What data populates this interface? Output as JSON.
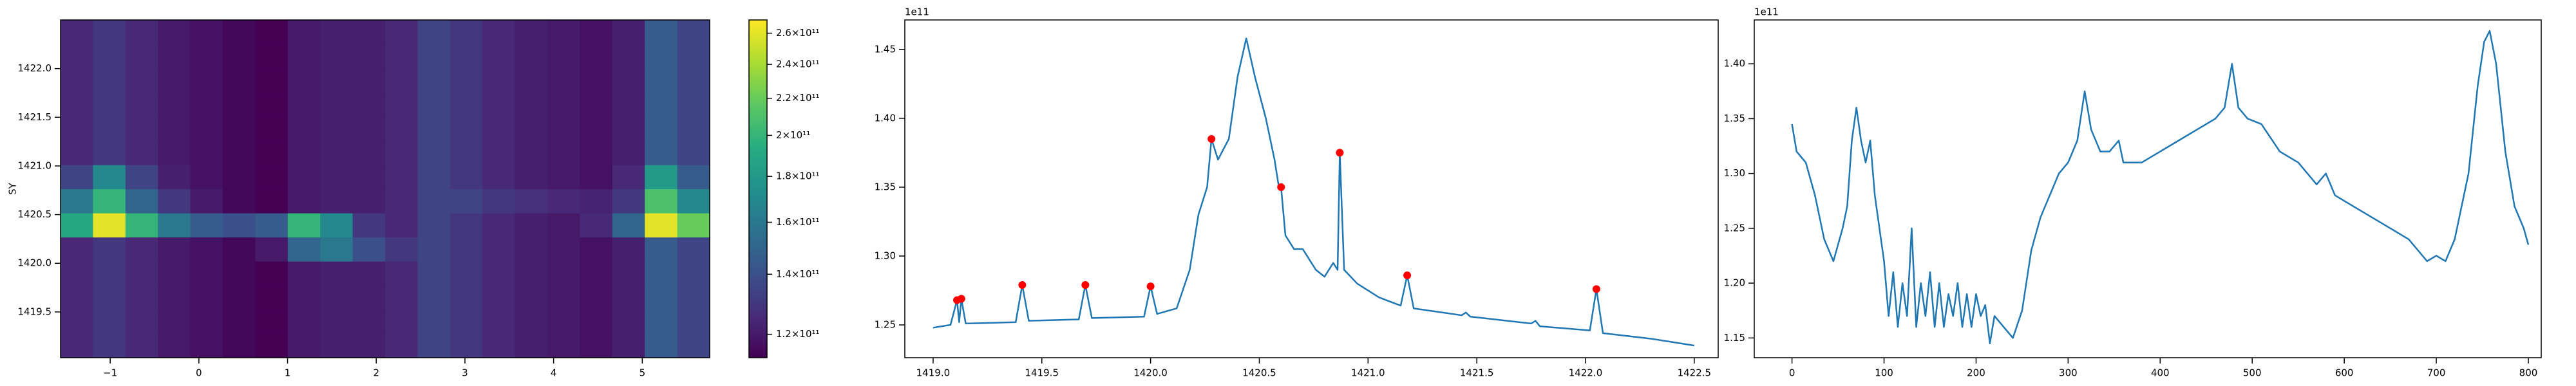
{
  "chart_data": [
    {
      "type": "heatmap",
      "ylabel": "SY",
      "xlim": [
        -1.56,
        5.76
      ],
      "ylim": [
        1419.03,
        1422.5
      ],
      "xticks": [
        {
          "value": -1,
          "label": "−1"
        },
        0,
        1,
        2,
        3,
        4,
        5
      ],
      "yticks": [
        1419.5,
        {
          "value": 1420,
          "label": "1420.0"
        },
        1420.5,
        {
          "value": 1421,
          "label": "1421.0"
        },
        1421.5,
        {
          "value": 1422,
          "label": "1422.0"
        }
      ],
      "colormap": "viridis",
      "color_scale": "log",
      "clim": [
        113000000000.0,
        269000000000.0
      ],
      "cticks": [
        {
          "value": 120000000000.0,
          "label": "1.2×10¹¹"
        },
        {
          "value": 140000000000.0,
          "label": "1.4×10¹¹"
        },
        {
          "value": 160000000000.0,
          "label": "1.6×10¹¹"
        },
        {
          "value": 180000000000.0,
          "label": "1.8×10¹¹"
        },
        {
          "value": 200000000000.0,
          "label": "2×10¹¹"
        },
        {
          "value": 220000000000.0,
          "label": "2.2×10¹¹"
        },
        {
          "value": 240000000000.0,
          "label": "2.4×10¹¹"
        },
        {
          "value": 260000000000.0,
          "label": "2.6×10¹¹"
        }
      ],
      "z": [
        [
          125000000000.0,
          130000000000.0,
          125000000000.0,
          120000000000.0,
          118000000000.0,
          115000000000.0,
          113000000000.0,
          120000000000.0,
          122000000000.0,
          122000000000.0,
          125000000000.0,
          135000000000.0,
          130000000000.0,
          125000000000.0,
          122000000000.0,
          120000000000.0,
          118000000000.0,
          122000000000.0,
          145000000000.0,
          135000000000.0
        ],
        [
          125000000000.0,
          130000000000.0,
          125000000000.0,
          120000000000.0,
          118000000000.0,
          115000000000.0,
          113000000000.0,
          120000000000.0,
          122000000000.0,
          122000000000.0,
          125000000000.0,
          135000000000.0,
          130000000000.0,
          125000000000.0,
          122000000000.0,
          120000000000.0,
          118000000000.0,
          122000000000.0,
          145000000000.0,
          135000000000.0
        ],
        [
          125000000000.0,
          130000000000.0,
          125000000000.0,
          120000000000.0,
          118000000000.0,
          115000000000.0,
          113000000000.0,
          120000000000.0,
          122000000000.0,
          122000000000.0,
          125000000000.0,
          135000000000.0,
          130000000000.0,
          125000000000.0,
          122000000000.0,
          120000000000.0,
          118000000000.0,
          122000000000.0,
          145000000000.0,
          135000000000.0
        ],
        [
          125000000000.0,
          130000000000.0,
          125000000000.0,
          120000000000.0,
          118000000000.0,
          115000000000.0,
          113000000000.0,
          120000000000.0,
          122000000000.0,
          122000000000.0,
          125000000000.0,
          135000000000.0,
          130000000000.0,
          125000000000.0,
          122000000000.0,
          120000000000.0,
          118000000000.0,
          122000000000.0,
          145000000000.0,
          135000000000.0
        ],
        [
          125000000000.0,
          130000000000.0,
          125000000000.0,
          120000000000.0,
          118000000000.0,
          115000000000.0,
          120000000000.0,
          150000000000.0,
          160000000000.0,
          140000000000.0,
          130000000000.0,
          135000000000.0,
          130000000000.0,
          125000000000.0,
          122000000000.0,
          120000000000.0,
          118000000000.0,
          122000000000.0,
          145000000000.0,
          135000000000.0
        ],
        [
          190000000000.0,
          260000000000.0,
          200000000000.0,
          160000000000.0,
          145000000000.0,
          140000000000.0,
          145000000000.0,
          200000000000.0,
          170000000000.0,
          130000000000.0,
          125000000000.0,
          135000000000.0,
          130000000000.0,
          125000000000.0,
          122000000000.0,
          120000000000.0,
          125000000000.0,
          150000000000.0,
          260000000000.0,
          220000000000.0
        ],
        [
          160000000000.0,
          200000000000.0,
          150000000000.0,
          130000000000.0,
          120000000000.0,
          115000000000.0,
          113000000000.0,
          120000000000.0,
          122000000000.0,
          122000000000.0,
          125000000000.0,
          135000000000.0,
          135000000000.0,
          130000000000.0,
          127000000000.0,
          125000000000.0,
          123000000000.0,
          130000000000.0,
          210000000000.0,
          170000000000.0
        ],
        [
          135000000000.0,
          170000000000.0,
          135000000000.0,
          122000000000.0,
          118000000000.0,
          115000000000.0,
          113000000000.0,
          120000000000.0,
          122000000000.0,
          122000000000.0,
          125000000000.0,
          135000000000.0,
          130000000000.0,
          125000000000.0,
          122000000000.0,
          120000000000.0,
          118000000000.0,
          125000000000.0,
          180000000000.0,
          145000000000.0
        ],
        [
          125000000000.0,
          130000000000.0,
          125000000000.0,
          120000000000.0,
          118000000000.0,
          115000000000.0,
          113000000000.0,
          120000000000.0,
          122000000000.0,
          122000000000.0,
          125000000000.0,
          135000000000.0,
          130000000000.0,
          125000000000.0,
          122000000000.0,
          120000000000.0,
          118000000000.0,
          122000000000.0,
          145000000000.0,
          135000000000.0
        ],
        [
          125000000000.0,
          130000000000.0,
          125000000000.0,
          120000000000.0,
          118000000000.0,
          115000000000.0,
          113000000000.0,
          120000000000.0,
          122000000000.0,
          122000000000.0,
          125000000000.0,
          135000000000.0,
          130000000000.0,
          125000000000.0,
          122000000000.0,
          120000000000.0,
          118000000000.0,
          122000000000.0,
          145000000000.0,
          135000000000.0
        ],
        [
          125000000000.0,
          130000000000.0,
          125000000000.0,
          120000000000.0,
          118000000000.0,
          115000000000.0,
          113000000000.0,
          120000000000.0,
          122000000000.0,
          122000000000.0,
          125000000000.0,
          135000000000.0,
          130000000000.0,
          125000000000.0,
          122000000000.0,
          120000000000.0,
          118000000000.0,
          122000000000.0,
          145000000000.0,
          135000000000.0
        ],
        [
          125000000000.0,
          130000000000.0,
          125000000000.0,
          120000000000.0,
          118000000000.0,
          115000000000.0,
          113000000000.0,
          120000000000.0,
          122000000000.0,
          122000000000.0,
          125000000000.0,
          135000000000.0,
          130000000000.0,
          125000000000.0,
          122000000000.0,
          120000000000.0,
          118000000000.0,
          122000000000.0,
          145000000000.0,
          135000000000.0
        ],
        [
          125000000000.0,
          130000000000.0,
          125000000000.0,
          120000000000.0,
          118000000000.0,
          115000000000.0,
          113000000000.0,
          120000000000.0,
          122000000000.0,
          122000000000.0,
          125000000000.0,
          135000000000.0,
          130000000000.0,
          125000000000.0,
          122000000000.0,
          120000000000.0,
          118000000000.0,
          122000000000.0,
          145000000000.0,
          135000000000.0
        ],
        [
          125000000000.0,
          130000000000.0,
          125000000000.0,
          120000000000.0,
          118000000000.0,
          115000000000.0,
          113000000000.0,
          120000000000.0,
          122000000000.0,
          122000000000.0,
          125000000000.0,
          135000000000.0,
          130000000000.0,
          125000000000.0,
          122000000000.0,
          120000000000.0,
          118000000000.0,
          122000000000.0,
          145000000000.0,
          135000000000.0
        ]
      ]
    },
    {
      "type": "line",
      "offset_text": "1e11",
      "xlim": [
        1418.87,
        1422.61
      ],
      "ylim": [
        1.2262,
        1.4714
      ],
      "xticks": [
        {
          "value": 1419,
          "label": "1419.0"
        },
        1419.5,
        {
          "value": 1420,
          "label": "1420.0"
        },
        1420.5,
        {
          "value": 1421,
          "label": "1421.0"
        },
        1421.5,
        {
          "value": 1422,
          "label": "1422.0"
        },
        1422.5
      ],
      "yticks": [
        1.25,
        {
          "value": 1.3,
          "label": "1.30"
        },
        1.35,
        {
          "value": 1.4,
          "label": "1.40"
        },
        1.45
      ],
      "series": [
        {
          "color": "#1f77b4",
          "style": "line",
          "x": [
            1419.0,
            1419.08,
            1419.11,
            1419.12,
            1419.13,
            1419.15,
            1419.38,
            1419.41,
            1419.44,
            1419.67,
            1419.7,
            1419.73,
            1419.97,
            1420.0,
            1420.03,
            1420.12,
            1420.18,
            1420.22,
            1420.26,
            1420.28,
            1420.31,
            1420.36,
            1420.4,
            1420.44,
            1420.48,
            1420.53,
            1420.57,
            1420.59,
            1420.6,
            1420.62,
            1420.66,
            1420.7,
            1420.76,
            1420.8,
            1420.84,
            1420.86,
            1420.87,
            1420.89,
            1420.95,
            1421.05,
            1421.15,
            1421.18,
            1421.21,
            1421.43,
            1421.45,
            1421.47,
            1421.75,
            1421.77,
            1421.79,
            1422.02,
            1422.05,
            1422.08,
            1422.3,
            1422.5
          ],
          "values": [
            1.248,
            1.25,
            1.268,
            1.252,
            1.269,
            1.251,
            1.252,
            1.279,
            1.253,
            1.254,
            1.279,
            1.255,
            1.256,
            1.278,
            1.258,
            1.262,
            1.29,
            1.33,
            1.35,
            1.385,
            1.37,
            1.385,
            1.43,
            1.458,
            1.43,
            1.4,
            1.37,
            1.35,
            1.35,
            1.315,
            1.305,
            1.305,
            1.29,
            1.285,
            1.295,
            1.29,
            1.375,
            1.29,
            1.28,
            1.27,
            1.264,
            1.286,
            1.262,
            1.257,
            1.259,
            1.256,
            1.251,
            1.253,
            1.249,
            1.246,
            1.276,
            1.244,
            1.24,
            1.235
          ]
        },
        {
          "color": "#ff0000",
          "style": "markers",
          "x": [
            1419.11,
            1419.13,
            1419.41,
            1419.7,
            1420.0,
            1420.28,
            1420.6,
            1420.87,
            1421.18,
            1422.05
          ],
          "values": [
            1.268,
            1.269,
            1.279,
            1.279,
            1.278,
            1.385,
            1.35,
            1.375,
            1.286,
            1.276
          ]
        }
      ]
    },
    {
      "type": "line",
      "offset_text": "1e11",
      "xlim": [
        -41,
        814
      ],
      "ylim": [
        1.132,
        1.44
      ],
      "xticks": [
        0,
        100,
        200,
        300,
        400,
        500,
        600,
        700,
        800
      ],
      "yticks": [
        1.15,
        {
          "value": 1.2,
          "label": "1.20"
        },
        1.25,
        {
          "value": 1.3,
          "label": "1.30"
        },
        1.35,
        {
          "value": 1.4,
          "label": "1.40"
        }
      ],
      "series": [
        {
          "color": "#1f77b4",
          "style": "line",
          "x": [
            0,
            5,
            15,
            25,
            35,
            45,
            55,
            60,
            65,
            70,
            75,
            80,
            85,
            90,
            100,
            105,
            110,
            115,
            120,
            125,
            130,
            135,
            140,
            145,
            150,
            155,
            160,
            165,
            170,
            175,
            180,
            185,
            190,
            195,
            200,
            205,
            210,
            215,
            220,
            230,
            240,
            250,
            260,
            270,
            280,
            290,
            300,
            310,
            318,
            325,
            335,
            345,
            355,
            360,
            380,
            400,
            420,
            440,
            460,
            470,
            478,
            485,
            495,
            510,
            530,
            550,
            570,
            580,
            590,
            610,
            630,
            650,
            670,
            690,
            700,
            710,
            720,
            735,
            745,
            752,
            758,
            765,
            775,
            785,
            795,
            800
          ],
          "values": [
            1.345,
            1.32,
            1.31,
            1.28,
            1.24,
            1.22,
            1.25,
            1.27,
            1.33,
            1.36,
            1.33,
            1.31,
            1.33,
            1.28,
            1.22,
            1.17,
            1.21,
            1.16,
            1.2,
            1.17,
            1.25,
            1.16,
            1.2,
            1.17,
            1.21,
            1.16,
            1.2,
            1.16,
            1.19,
            1.17,
            1.2,
            1.16,
            1.19,
            1.16,
            1.19,
            1.17,
            1.18,
            1.145,
            1.17,
            1.16,
            1.15,
            1.175,
            1.23,
            1.26,
            1.28,
            1.3,
            1.31,
            1.33,
            1.375,
            1.34,
            1.32,
            1.32,
            1.33,
            1.31,
            1.31,
            1.32,
            1.33,
            1.34,
            1.35,
            1.36,
            1.4,
            1.36,
            1.35,
            1.345,
            1.32,
            1.31,
            1.29,
            1.3,
            1.28,
            1.27,
            1.26,
            1.25,
            1.24,
            1.22,
            1.225,
            1.22,
            1.24,
            1.3,
            1.38,
            1.42,
            1.43,
            1.4,
            1.32,
            1.27,
            1.25,
            1.235
          ]
        }
      ]
    }
  ]
}
